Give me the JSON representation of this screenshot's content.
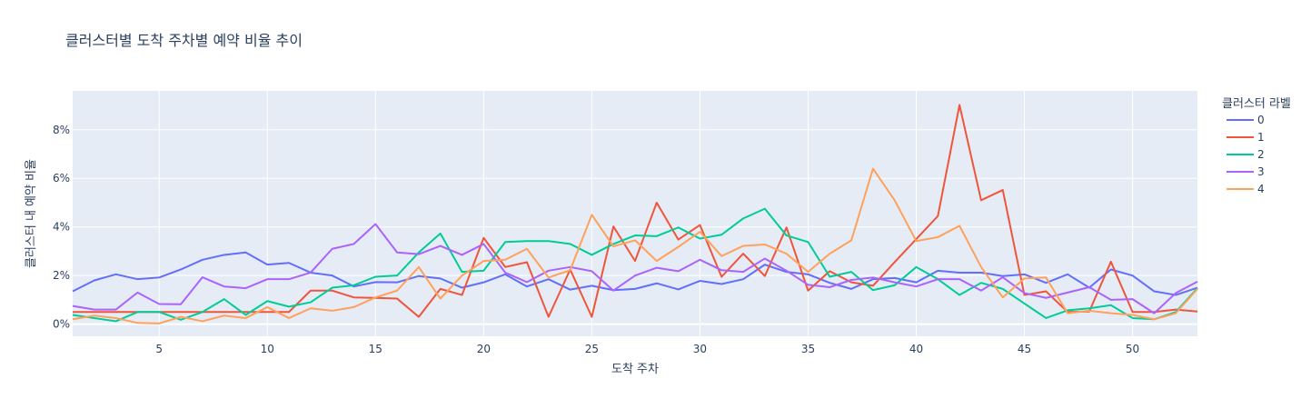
{
  "chart_data": {
    "type": "line",
    "title": "클러스터별 도착 주차별 예약 비율 추이",
    "xlabel": "도착 주차",
    "ylabel": "클러스터 내 예약 비율",
    "xlim": [
      1,
      53
    ],
    "ylim": [
      -0.5,
      9.6
    ],
    "x_ticks": [
      5,
      10,
      15,
      20,
      25,
      30,
      35,
      40,
      45,
      50
    ],
    "y_ticks": [
      0,
      2,
      4,
      6,
      8
    ],
    "y_tick_suffix": "%",
    "grid": true,
    "legend_title": "클러스터 라벨",
    "legend_position": "right",
    "background": "#e5ecf6",
    "x": [
      1,
      2,
      3,
      4,
      5,
      6,
      7,
      8,
      9,
      10,
      11,
      12,
      13,
      14,
      15,
      16,
      17,
      18,
      19,
      20,
      21,
      22,
      23,
      24,
      25,
      26,
      27,
      28,
      29,
      30,
      31,
      32,
      33,
      34,
      35,
      36,
      37,
      38,
      39,
      40,
      41,
      42,
      43,
      44,
      45,
      46,
      47,
      48,
      49,
      50,
      51,
      52,
      53
    ],
    "series": [
      {
        "name": "0",
        "color": "#636efa",
        "values": [
          1.35,
          1.8,
          2.05,
          1.85,
          1.92,
          2.25,
          2.65,
          2.85,
          2.95,
          2.45,
          2.52,
          2.12,
          2.0,
          1.55,
          1.73,
          1.72,
          1.98,
          1.88,
          1.5,
          1.72,
          2.05,
          1.55,
          1.85,
          1.42,
          1.58,
          1.4,
          1.45,
          1.68,
          1.43,
          1.78,
          1.65,
          1.85,
          2.45,
          2.15,
          2.05,
          1.7,
          1.45,
          1.85,
          1.9,
          1.72,
          2.2,
          2.12,
          2.12,
          1.98,
          2.05,
          1.7,
          2.05,
          1.5,
          2.25,
          2.0,
          1.35,
          1.2,
          1.5
        ]
      },
      {
        "name": "1",
        "color": "#ef553b",
        "values": [
          0.5,
          0.5,
          0.5,
          0.5,
          0.5,
          0.5,
          0.5,
          0.5,
          0.5,
          0.5,
          0.5,
          1.38,
          1.38,
          1.1,
          1.08,
          1.05,
          0.3,
          1.45,
          1.2,
          3.55,
          2.35,
          2.55,
          0.3,
          2.25,
          0.3,
          4.02,
          2.6,
          5.0,
          3.48,
          4.08,
          1.95,
          2.9,
          1.98,
          3.98,
          1.38,
          2.18,
          1.72,
          1.58,
          2.55,
          3.5,
          4.45,
          9.02,
          5.1,
          5.52,
          1.2,
          1.35,
          0.5,
          0.52,
          2.57,
          0.5,
          0.5,
          0.6,
          0.52
        ]
      },
      {
        "name": "2",
        "color": "#00cc96",
        "values": [
          0.38,
          0.25,
          0.12,
          0.5,
          0.5,
          0.18,
          0.5,
          1.03,
          0.38,
          0.95,
          0.72,
          0.9,
          1.5,
          1.6,
          1.95,
          2.0,
          2.95,
          3.73,
          2.15,
          2.2,
          3.38,
          3.42,
          3.42,
          3.3,
          2.85,
          3.3,
          3.65,
          3.62,
          3.98,
          3.52,
          3.68,
          4.35,
          4.75,
          3.65,
          3.38,
          1.95,
          2.15,
          1.4,
          1.6,
          2.35,
          1.85,
          1.2,
          1.7,
          1.45,
          0.85,
          0.25,
          0.57,
          0.65,
          0.78,
          0.25,
          0.2,
          0.5,
          1.48
        ]
      },
      {
        "name": "3",
        "color": "#ab63fa",
        "values": [
          0.75,
          0.6,
          0.6,
          1.3,
          0.83,
          0.82,
          1.93,
          1.55,
          1.48,
          1.85,
          1.85,
          2.12,
          3.1,
          3.3,
          4.12,
          2.95,
          2.88,
          3.22,
          2.85,
          3.3,
          2.12,
          1.73,
          2.2,
          2.35,
          2.18,
          1.38,
          2.0,
          2.32,
          2.18,
          2.65,
          2.22,
          2.15,
          2.7,
          2.2,
          1.62,
          1.52,
          1.82,
          1.92,
          1.72,
          1.55,
          1.85,
          1.85,
          1.38,
          1.93,
          1.28,
          1.08,
          1.3,
          1.52,
          1.0,
          1.03,
          0.45,
          1.28,
          1.75
        ]
      },
      {
        "name": "4",
        "color": "#ffa15a",
        "values": [
          0.2,
          0.35,
          0.25,
          0.05,
          0.03,
          0.3,
          0.12,
          0.35,
          0.25,
          0.7,
          0.25,
          0.65,
          0.55,
          0.7,
          1.1,
          1.38,
          2.35,
          1.05,
          2.0,
          2.6,
          2.65,
          3.1,
          1.92,
          2.22,
          4.5,
          3.2,
          3.45,
          2.6,
          3.18,
          3.8,
          2.8,
          3.22,
          3.28,
          2.9,
          2.15,
          2.9,
          3.45,
          6.4,
          5.1,
          3.42,
          3.58,
          4.05,
          2.35,
          1.1,
          1.88,
          1.92,
          0.45,
          0.55,
          0.45,
          0.38,
          0.2,
          0.45,
          1.45
        ]
      }
    ]
  }
}
